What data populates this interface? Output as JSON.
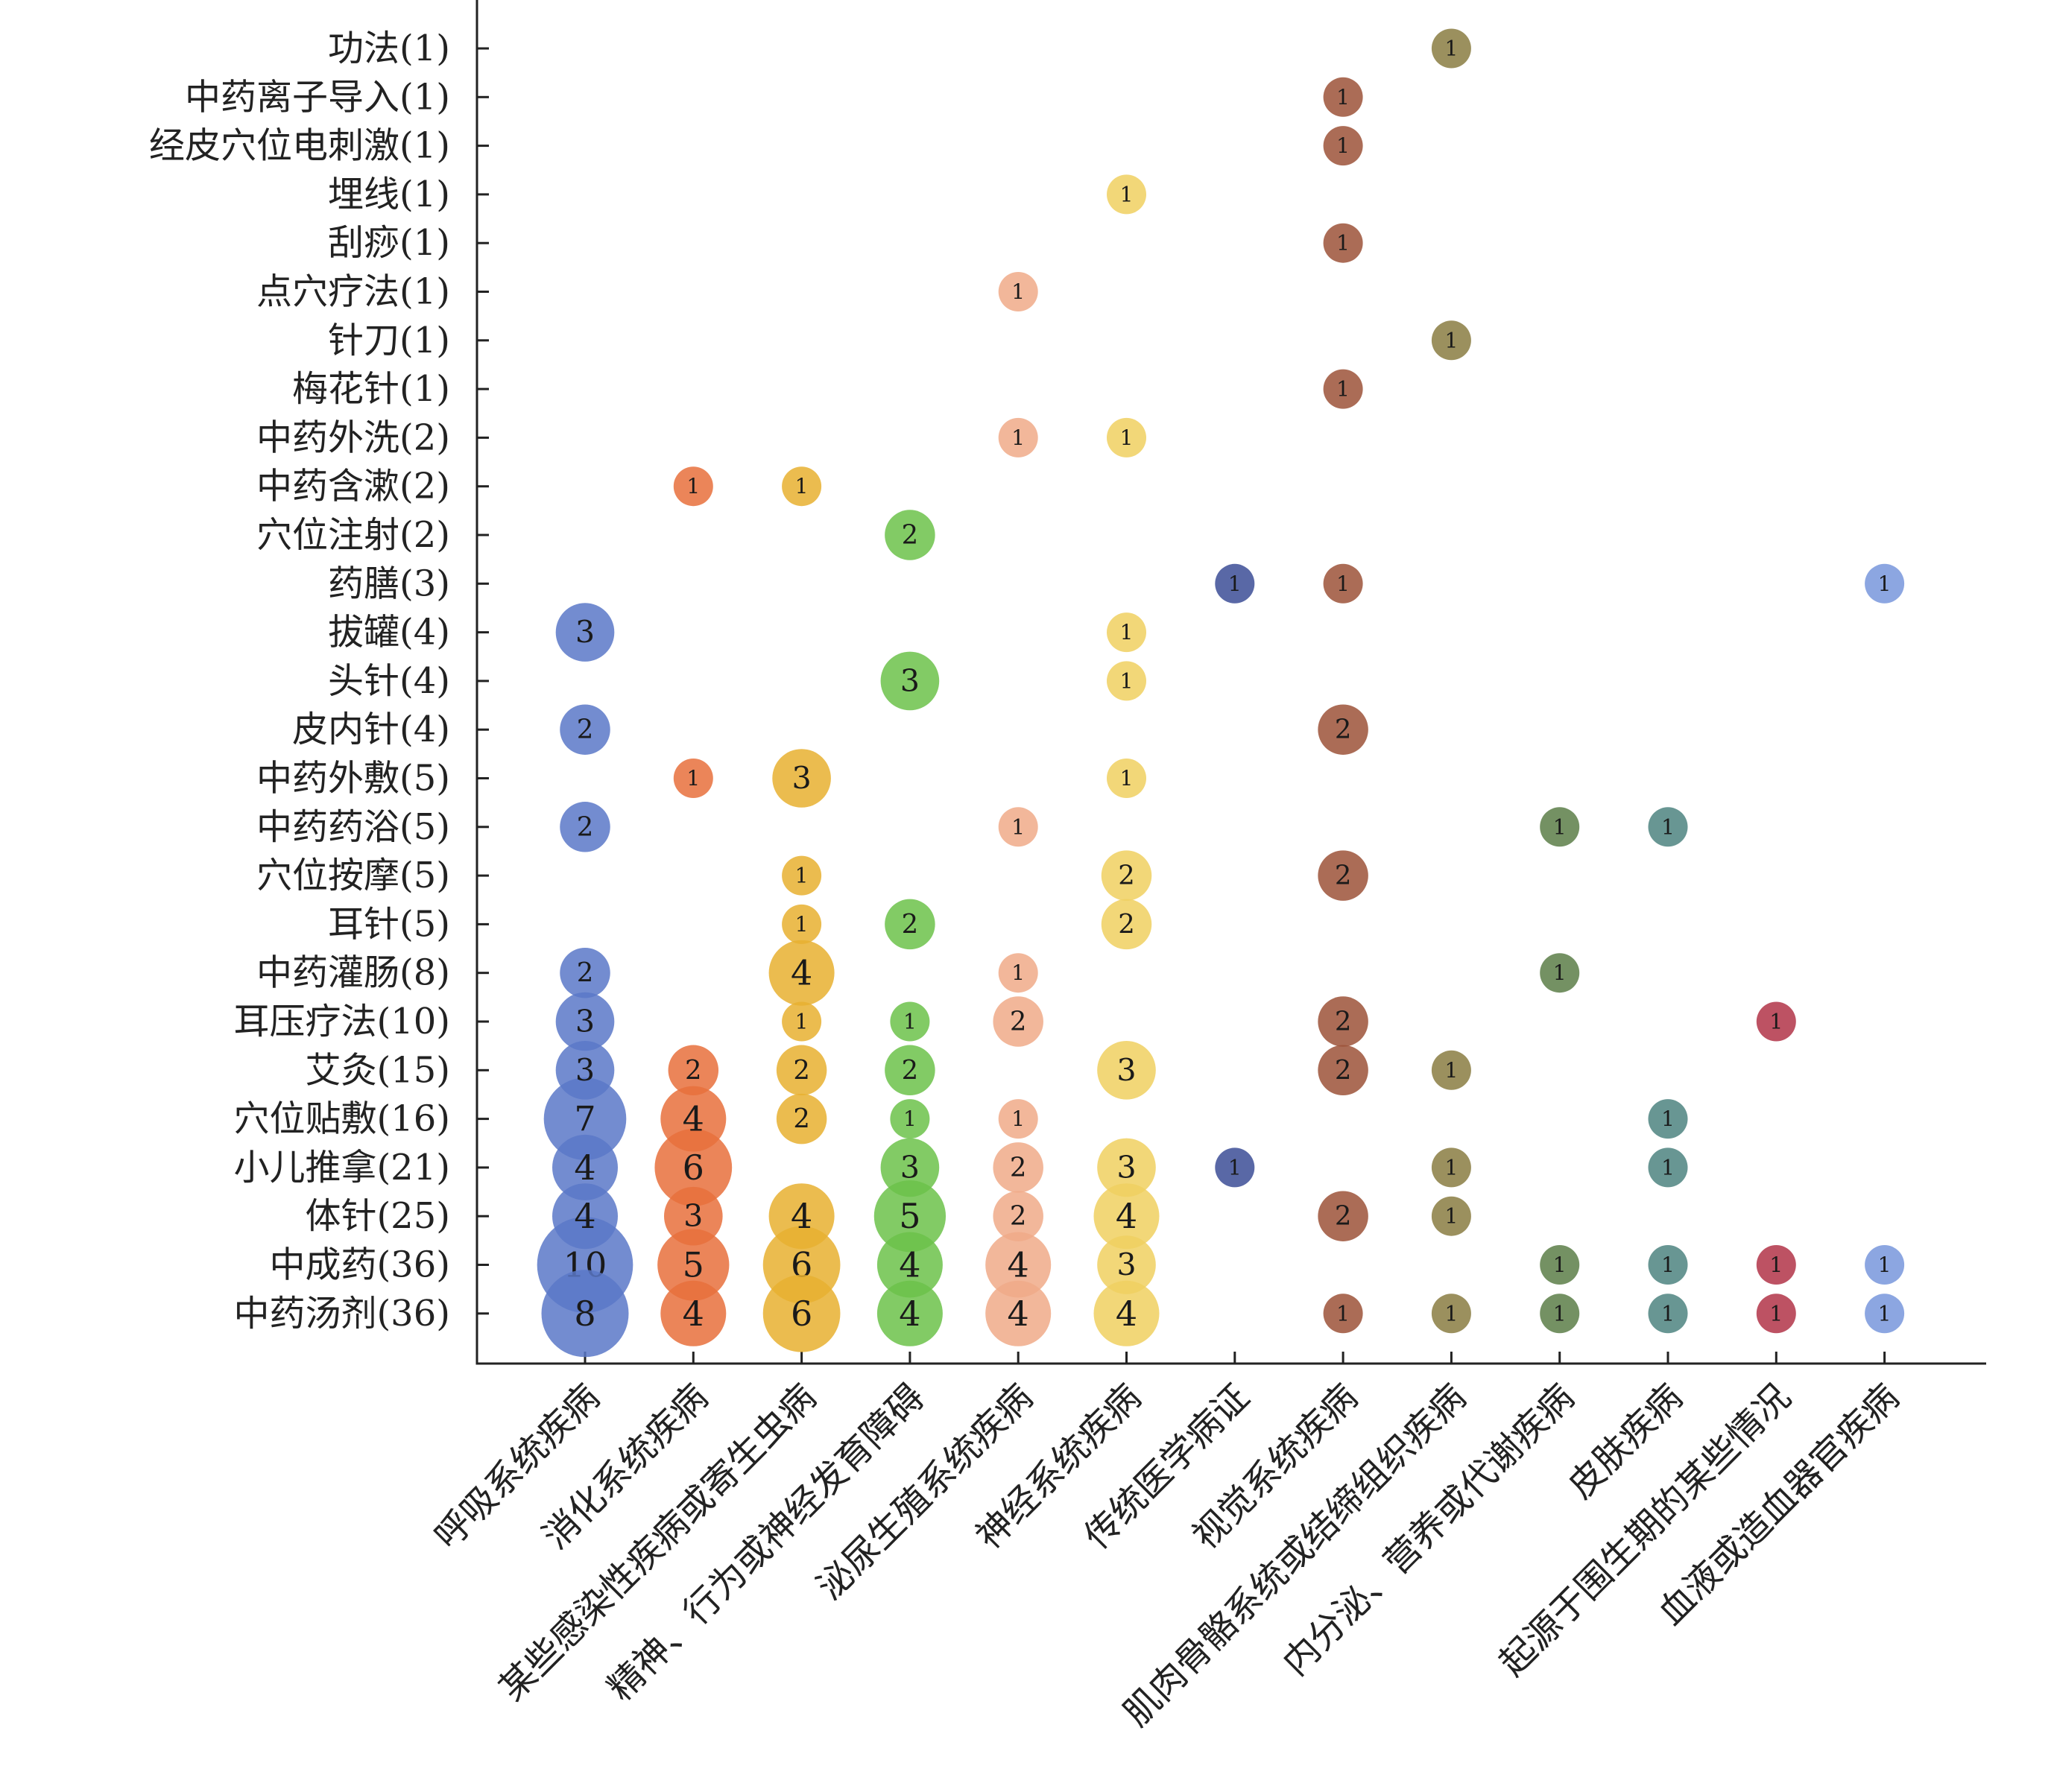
{
  "chart_data": {
    "type": "scatter",
    "encoding": "bubble",
    "y_categories": [
      "功法(1)",
      "中药离子导入(1)",
      "经皮穴位电刺激(1)",
      "埋线(1)",
      "刮痧(1)",
      "点穴疗法(1)",
      "针刀(1)",
      "梅花针(1)",
      "中药外洗(2)",
      "中药含漱(2)",
      "穴位注射(2)",
      "药膳(3)",
      "拔罐(4)",
      "头针(4)",
      "皮内针(4)",
      "中药外敷(5)",
      "中药药浴(5)",
      "穴位按摩(5)",
      "耳针(5)",
      "中药灌肠(8)",
      "耳压疗法(10)",
      "艾灸(15)",
      "穴位贴敷(16)",
      "小儿推拿(21)",
      "体针(25)",
      "中成药(36)",
      "中药汤剂(36)"
    ],
    "x_categories": [
      "呼吸系统疾病",
      "消化系统疾病",
      "某些感染性疾病或寄生虫病",
      "精神、行为或神经发育障碍",
      "泌尿生殖系统疾病",
      "神经系统疾病",
      "传统医学病证",
      "视觉系统疾病",
      "肌肉骨骼系统或结缔组织疾病",
      "内分泌、营养或代谢疾病",
      "皮肤疾病",
      "起源于围生期的某些情况",
      "血液或造血器官疾病"
    ],
    "colors": [
      "#5b78c8",
      "#e8703c",
      "#e8b030",
      "#6cc24a",
      "#f0aa88",
      "#f0d060",
      "#3c4e96",
      "#9c5238",
      "#8a7c42",
      "#5c7e48",
      "#4e8480",
      "#b23448",
      "#7896dc"
    ],
    "points": [
      {
        "y": "功法(1)",
        "x": "肌肉骨骼系统或结缔组织疾病",
        "value": 1
      },
      {
        "y": "中药离子导入(1)",
        "x": "视觉系统疾病",
        "value": 1
      },
      {
        "y": "经皮穴位电刺激(1)",
        "x": "视觉系统疾病",
        "value": 1
      },
      {
        "y": "埋线(1)",
        "x": "神经系统疾病",
        "value": 1
      },
      {
        "y": "刮痧(1)",
        "x": "视觉系统疾病",
        "value": 1
      },
      {
        "y": "点穴疗法(1)",
        "x": "泌尿生殖系统疾病",
        "value": 1
      },
      {
        "y": "针刀(1)",
        "x": "肌肉骨骼系统或结缔组织疾病",
        "value": 1
      },
      {
        "y": "梅花针(1)",
        "x": "视觉系统疾病",
        "value": 1
      },
      {
        "y": "中药外洗(2)",
        "x": "泌尿生殖系统疾病",
        "value": 1
      },
      {
        "y": "中药外洗(2)",
        "x": "神经系统疾病",
        "value": 1
      },
      {
        "y": "中药含漱(2)",
        "x": "消化系统疾病",
        "value": 1
      },
      {
        "y": "中药含漱(2)",
        "x": "某些感染性疾病或寄生虫病",
        "value": 1
      },
      {
        "y": "穴位注射(2)",
        "x": "精神、行为或神经发育障碍",
        "value": 2
      },
      {
        "y": "药膳(3)",
        "x": "传统医学病证",
        "value": 1
      },
      {
        "y": "药膳(3)",
        "x": "视觉系统疾病",
        "value": 1
      },
      {
        "y": "药膳(3)",
        "x": "血液或造血器官疾病",
        "value": 1
      },
      {
        "y": "拔罐(4)",
        "x": "呼吸系统疾病",
        "value": 3
      },
      {
        "y": "拔罐(4)",
        "x": "神经系统疾病",
        "value": 1
      },
      {
        "y": "头针(4)",
        "x": "精神、行为或神经发育障碍",
        "value": 3
      },
      {
        "y": "头针(4)",
        "x": "神经系统疾病",
        "value": 1
      },
      {
        "y": "皮内针(4)",
        "x": "呼吸系统疾病",
        "value": 2
      },
      {
        "y": "皮内针(4)",
        "x": "视觉系统疾病",
        "value": 2
      },
      {
        "y": "中药外敷(5)",
        "x": "消化系统疾病",
        "value": 1
      },
      {
        "y": "中药外敷(5)",
        "x": "某些感染性疾病或寄生虫病",
        "value": 3
      },
      {
        "y": "中药外敷(5)",
        "x": "神经系统疾病",
        "value": 1
      },
      {
        "y": "中药药浴(5)",
        "x": "呼吸系统疾病",
        "value": 2
      },
      {
        "y": "中药药浴(5)",
        "x": "泌尿生殖系统疾病",
        "value": 1
      },
      {
        "y": "中药药浴(5)",
        "x": "内分泌、营养或代谢疾病",
        "value": 1
      },
      {
        "y": "中药药浴(5)",
        "x": "皮肤疾病",
        "value": 1
      },
      {
        "y": "穴位按摩(5)",
        "x": "某些感染性疾病或寄生虫病",
        "value": 1
      },
      {
        "y": "穴位按摩(5)",
        "x": "神经系统疾病",
        "value": 2
      },
      {
        "y": "穴位按摩(5)",
        "x": "视觉系统疾病",
        "value": 2
      },
      {
        "y": "耳针(5)",
        "x": "某些感染性疾病或寄生虫病",
        "value": 1
      },
      {
        "y": "耳针(5)",
        "x": "精神、行为或神经发育障碍",
        "value": 2
      },
      {
        "y": "耳针(5)",
        "x": "神经系统疾病",
        "value": 2
      },
      {
        "y": "中药灌肠(8)",
        "x": "呼吸系统疾病",
        "value": 2
      },
      {
        "y": "中药灌肠(8)",
        "x": "某些感染性疾病或寄生虫病",
        "value": 4
      },
      {
        "y": "中药灌肠(8)",
        "x": "泌尿生殖系统疾病",
        "value": 1
      },
      {
        "y": "中药灌肠(8)",
        "x": "内分泌、营养或代谢疾病",
        "value": 1
      },
      {
        "y": "耳压疗法(10)",
        "x": "呼吸系统疾病",
        "value": 3
      },
      {
        "y": "耳压疗法(10)",
        "x": "某些感染性疾病或寄生虫病",
        "value": 1
      },
      {
        "y": "耳压疗法(10)",
        "x": "精神、行为或神经发育障碍",
        "value": 1
      },
      {
        "y": "耳压疗法(10)",
        "x": "泌尿生殖系统疾病",
        "value": 2
      },
      {
        "y": "耳压疗法(10)",
        "x": "视觉系统疾病",
        "value": 2
      },
      {
        "y": "耳压疗法(10)",
        "x": "起源于围生期的某些情况",
        "value": 1
      },
      {
        "y": "艾灸(15)",
        "x": "呼吸系统疾病",
        "value": 3
      },
      {
        "y": "艾灸(15)",
        "x": "消化系统疾病",
        "value": 2
      },
      {
        "y": "艾灸(15)",
        "x": "某些感染性疾病或寄生虫病",
        "value": 2
      },
      {
        "y": "艾灸(15)",
        "x": "精神、行为或神经发育障碍",
        "value": 2
      },
      {
        "y": "艾灸(15)",
        "x": "神经系统疾病",
        "value": 3
      },
      {
        "y": "艾灸(15)",
        "x": "视觉系统疾病",
        "value": 2
      },
      {
        "y": "艾灸(15)",
        "x": "肌肉骨骼系统或结缔组织疾病",
        "value": 1
      },
      {
        "y": "穴位贴敷(16)",
        "x": "呼吸系统疾病",
        "value": 7
      },
      {
        "y": "穴位贴敷(16)",
        "x": "消化系统疾病",
        "value": 4
      },
      {
        "y": "穴位贴敷(16)",
        "x": "某些感染性疾病或寄生虫病",
        "value": 2
      },
      {
        "y": "穴位贴敷(16)",
        "x": "精神、行为或神经发育障碍",
        "value": 1
      },
      {
        "y": "穴位贴敷(16)",
        "x": "泌尿生殖系统疾病",
        "value": 1
      },
      {
        "y": "穴位贴敷(16)",
        "x": "皮肤疾病",
        "value": 1
      },
      {
        "y": "小儿推拿(21)",
        "x": "呼吸系统疾病",
        "value": 4
      },
      {
        "y": "小儿推拿(21)",
        "x": "消化系统疾病",
        "value": 6
      },
      {
        "y": "小儿推拿(21)",
        "x": "精神、行为或神经发育障碍",
        "value": 3
      },
      {
        "y": "小儿推拿(21)",
        "x": "泌尿生殖系统疾病",
        "value": 2
      },
      {
        "y": "小儿推拿(21)",
        "x": "神经系统疾病",
        "value": 3
      },
      {
        "y": "小儿推拿(21)",
        "x": "传统医学病证",
        "value": 1
      },
      {
        "y": "小儿推拿(21)",
        "x": "肌肉骨骼系统或结缔组织疾病",
        "value": 1
      },
      {
        "y": "小儿推拿(21)",
        "x": "皮肤疾病",
        "value": 1
      },
      {
        "y": "体针(25)",
        "x": "呼吸系统疾病",
        "value": 4
      },
      {
        "y": "体针(25)",
        "x": "消化系统疾病",
        "value": 3
      },
      {
        "y": "体针(25)",
        "x": "某些感染性疾病或寄生虫病",
        "value": 4
      },
      {
        "y": "体针(25)",
        "x": "精神、行为或神经发育障碍",
        "value": 5
      },
      {
        "y": "体针(25)",
        "x": "泌尿生殖系统疾病",
        "value": 2
      },
      {
        "y": "体针(25)",
        "x": "神经系统疾病",
        "value": 4
      },
      {
        "y": "体针(25)",
        "x": "视觉系统疾病",
        "value": 2
      },
      {
        "y": "体针(25)",
        "x": "肌肉骨骼系统或结缔组织疾病",
        "value": 1
      },
      {
        "y": "中成药(36)",
        "x": "呼吸系统疾病",
        "value": 10
      },
      {
        "y": "中成药(36)",
        "x": "消化系统疾病",
        "value": 5
      },
      {
        "y": "中成药(36)",
        "x": "某些感染性疾病或寄生虫病",
        "value": 6
      },
      {
        "y": "中成药(36)",
        "x": "精神、行为或神经发育障碍",
        "value": 4
      },
      {
        "y": "中成药(36)",
        "x": "泌尿生殖系统疾病",
        "value": 4
      },
      {
        "y": "中成药(36)",
        "x": "神经系统疾病",
        "value": 3
      },
      {
        "y": "中成药(36)",
        "x": "内分泌、营养或代谢疾病",
        "value": 1
      },
      {
        "y": "中成药(36)",
        "x": "皮肤疾病",
        "value": 1
      },
      {
        "y": "中成药(36)",
        "x": "起源于围生期的某些情况",
        "value": 1
      },
      {
        "y": "中成药(36)",
        "x": "血液或造血器官疾病",
        "value": 1
      },
      {
        "y": "中药汤剂(36)",
        "x": "呼吸系统疾病",
        "value": 8
      },
      {
        "y": "中药汤剂(36)",
        "x": "消化系统疾病",
        "value": 4
      },
      {
        "y": "中药汤剂(36)",
        "x": "某些感染性疾病或寄生虫病",
        "value": 6
      },
      {
        "y": "中药汤剂(36)",
        "x": "精神、行为或神经发育障碍",
        "value": 4
      },
      {
        "y": "中药汤剂(36)",
        "x": "泌尿生殖系统疾病",
        "value": 4
      },
      {
        "y": "中药汤剂(36)",
        "x": "神经系统疾病",
        "value": 4
      },
      {
        "y": "中药汤剂(36)",
        "x": "视觉系统疾病",
        "value": 1
      },
      {
        "y": "中药汤剂(36)",
        "x": "肌肉骨骼系统或结缔组织疾病",
        "value": 1
      },
      {
        "y": "中药汤剂(36)",
        "x": "内分泌、营养或代谢疾病",
        "value": 1
      },
      {
        "y": "中药汤剂(36)",
        "x": "皮肤疾病",
        "value": 1
      },
      {
        "y": "中药汤剂(36)",
        "x": "起源于围生期的某些情况",
        "value": 1
      },
      {
        "y": "中药汤剂(36)",
        "x": "血液或造血器官疾病",
        "value": 1
      }
    ],
    "grid": false,
    "legend": "none",
    "title": "",
    "xlabel": "",
    "ylabel": ""
  }
}
